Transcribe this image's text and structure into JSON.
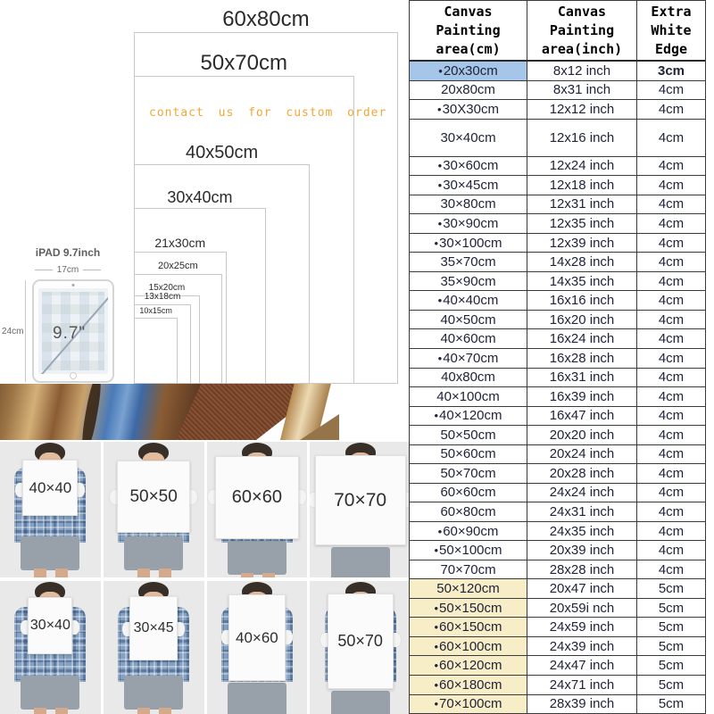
{
  "diagram": {
    "note": "contact us for custom order",
    "sizes": [
      {
        "label": "60x80cm",
        "w_cm": 60,
        "h_cm": 80
      },
      {
        "label": "50x70cm",
        "w_cm": 50,
        "h_cm": 70
      },
      {
        "label": "40x50cm",
        "w_cm": 40,
        "h_cm": 50
      },
      {
        "label": "30x40cm",
        "w_cm": 30,
        "h_cm": 40
      },
      {
        "label": "21x30cm",
        "w_cm": 21,
        "h_cm": 30
      },
      {
        "label": "20x25cm",
        "w_cm": 20,
        "h_cm": 25
      },
      {
        "label": "15x20cm",
        "w_cm": 15,
        "h_cm": 20
      },
      {
        "label": "13x18cm",
        "w_cm": 13,
        "h_cm": 18
      },
      {
        "label": "10x15cm",
        "w_cm": 10,
        "h_cm": 15
      }
    ]
  },
  "ipad": {
    "title": "iPAD 9.7inch",
    "width_label": "17cm",
    "height_label": "24cm",
    "screen_label": "9.7\""
  },
  "people": {
    "row1_labels": [
      "40×40",
      "50×50",
      "60×60",
      "70×70"
    ],
    "row2_labels": [
      "30×40",
      "30×45",
      "40×60",
      "50×70"
    ]
  },
  "table": {
    "headers": [
      "Canvas\nPainting\narea(cm)",
      "Canvas\nPainting\narea(inch)",
      "Extra\nWhite\nEdge"
    ],
    "rows": [
      {
        "cm": "20x30cm",
        "inch": "8x12 inch",
        "edge": "3cm",
        "bullet": true,
        "highlight": "blue"
      },
      {
        "cm": "20x80cm",
        "inch": "8x31 inch",
        "edge": "4cm",
        "bullet": false,
        "highlight": null
      },
      {
        "cm": "30X30cm",
        "inch": "12x12 inch",
        "edge": "4cm",
        "bullet": true,
        "highlight": null
      },
      {
        "cm": "30×40cm",
        "inch": "12x16 inch",
        "edge": "4cm",
        "bullet": false,
        "highlight": null
      },
      {
        "cm": "30×60cm",
        "inch": "12x24 inch",
        "edge": "4cm",
        "bullet": true,
        "highlight": null
      },
      {
        "cm": "30×45cm",
        "inch": "12x18 inch",
        "edge": "4cm",
        "bullet": true,
        "highlight": null
      },
      {
        "cm": "30×80cm",
        "inch": "12x31 inch",
        "edge": "4cm",
        "bullet": false,
        "highlight": null
      },
      {
        "cm": "30×90cm",
        "inch": "12x35 inch",
        "edge": "4cm",
        "bullet": true,
        "highlight": null
      },
      {
        "cm": "30×100cm",
        "inch": "12x39 inch",
        "edge": "4cm",
        "bullet": true,
        "highlight": null
      },
      {
        "cm": "35×70cm",
        "inch": "14x28 inch",
        "edge": "4cm",
        "bullet": false,
        "highlight": null
      },
      {
        "cm": "35×90cm",
        "inch": "14x35 inch",
        "edge": "4cm",
        "bullet": false,
        "highlight": null
      },
      {
        "cm": "40×40cm",
        "inch": "16x16 inch",
        "edge": "4cm",
        "bullet": true,
        "highlight": null
      },
      {
        "cm": "40×50cm",
        "inch": "16x20 inch",
        "edge": "4cm",
        "bullet": false,
        "highlight": null
      },
      {
        "cm": "40×60cm",
        "inch": "16x24 inch",
        "edge": "4cm",
        "bullet": false,
        "highlight": null
      },
      {
        "cm": "40×70cm",
        "inch": "16x28 inch",
        "edge": "4cm",
        "bullet": true,
        "highlight": null
      },
      {
        "cm": "40x80cm",
        "inch": "16x31 inch",
        "edge": "4cm",
        "bullet": false,
        "highlight": null
      },
      {
        "cm": "40×100cm",
        "inch": "16x39 inch",
        "edge": "4cm",
        "bullet": false,
        "highlight": null
      },
      {
        "cm": "40×120cm",
        "inch": "16x47 inch",
        "edge": "4cm",
        "bullet": true,
        "highlight": null
      },
      {
        "cm": "50×50cm",
        "inch": "20x20 inch",
        "edge": "4cm",
        "bullet": false,
        "highlight": null
      },
      {
        "cm": "50×60cm",
        "inch": "20x24 inch",
        "edge": "4cm",
        "bullet": false,
        "highlight": null
      },
      {
        "cm": "50×70cm",
        "inch": "20x28 inch",
        "edge": "4cm",
        "bullet": false,
        "highlight": null
      },
      {
        "cm": "60×60cm",
        "inch": "24x24 inch",
        "edge": "4cm",
        "bullet": false,
        "highlight": null
      },
      {
        "cm": "60×80cm",
        "inch": "24x31 inch",
        "edge": "4cm",
        "bullet": false,
        "highlight": null
      },
      {
        "cm": "60×90cm",
        "inch": "24x35 inch",
        "edge": "4cm",
        "bullet": true,
        "highlight": null
      },
      {
        "cm": "50×100cm",
        "inch": "20x39 inch",
        "edge": "4cm",
        "bullet": true,
        "highlight": null
      },
      {
        "cm": "70×70cm",
        "inch": "28x28 inch",
        "edge": "4cm",
        "bullet": false,
        "highlight": null
      },
      {
        "cm": "50×120cm",
        "inch": "20x47 inch",
        "edge": "5cm",
        "bullet": false,
        "highlight": "yellow"
      },
      {
        "cm": "50×150cm",
        "inch": "20x59i nch",
        "edge": "5cm",
        "bullet": true,
        "highlight": "yellow"
      },
      {
        "cm": "60×150cm",
        "inch": "24x59 inch",
        "edge": "5cm",
        "bullet": true,
        "highlight": "yellow"
      },
      {
        "cm": "60×100cm",
        "inch": "24x39 inch",
        "edge": "5cm",
        "bullet": true,
        "highlight": "yellow"
      },
      {
        "cm": "60×120cm",
        "inch": "24x47 inch",
        "edge": "5cm",
        "bullet": true,
        "highlight": "yellow"
      },
      {
        "cm": "60×180cm",
        "inch": "24x71 inch",
        "edge": "5cm",
        "bullet": true,
        "highlight": "yellow"
      },
      {
        "cm": "70×100cm",
        "inch": "28x39 inch",
        "edge": "5cm",
        "bullet": true,
        "highlight": "yellow"
      }
    ],
    "colors": {
      "highlight_blue": "#a6c6e9",
      "highlight_yellow": "#f7eec8",
      "note_orange": "#f2a638"
    }
  }
}
